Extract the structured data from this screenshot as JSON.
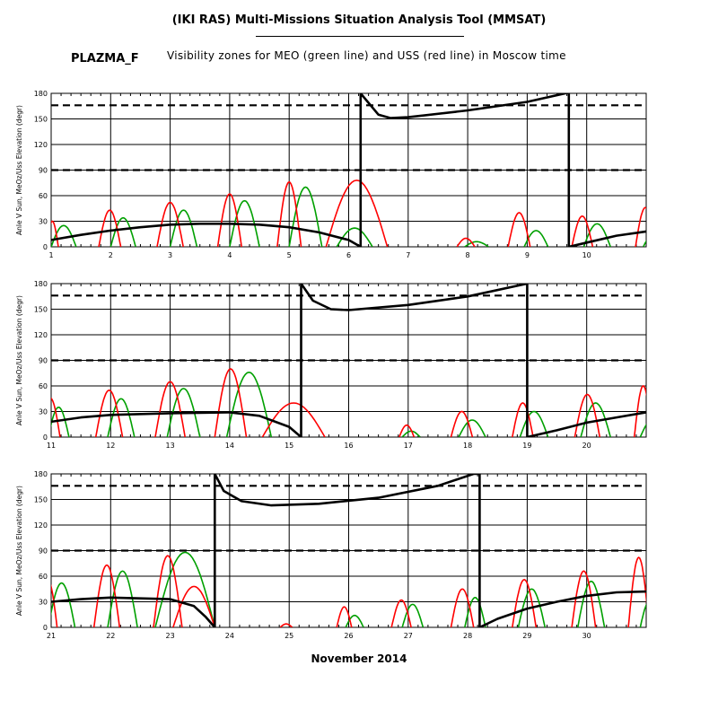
{
  "header": {
    "title": "(IKI RAS) Multi-Missions Situation Analysis Tool (MMSAT)",
    "mission": "PLAZMA_F",
    "subtitle": "Visibility zones for MEO (green line) and USS (red line) in Moscow time"
  },
  "xlabel": "November 2014",
  "colors": {
    "meo": "#00a000",
    "uss": "#ff0000",
    "sun_angle": "#000000",
    "grid": "#000000"
  },
  "chart_data": [
    {
      "type": "line",
      "ylabel": "Anle V Sun, MeOz/Uss Elevation (degr)",
      "ylim": [
        0,
        180
      ],
      "yticks": [
        0,
        30,
        60,
        90,
        120,
        150,
        180
      ],
      "xlim": [
        1,
        11
      ],
      "xticks": [
        1,
        2,
        3,
        4,
        5,
        6,
        7,
        8,
        9,
        10
      ],
      "thresholds": [
        90,
        166
      ],
      "sun_angle": [
        [
          1,
          8
        ],
        [
          1.5,
          14
        ],
        [
          2,
          19
        ],
        [
          2.5,
          23
        ],
        [
          3,
          26
        ],
        [
          3.5,
          27
        ],
        [
          4,
          27
        ],
        [
          4.5,
          26
        ],
        [
          5,
          23
        ],
        [
          5.5,
          17
        ],
        [
          6,
          8
        ],
        [
          6.2,
          0
        ],
        [
          6.2,
          180
        ],
        [
          6.5,
          155
        ],
        [
          6.7,
          151
        ],
        [
          7,
          152
        ],
        [
          8,
          160
        ],
        [
          9,
          170
        ],
        [
          9.7,
          181
        ],
        [
          9.7,
          0
        ],
        [
          10,
          5
        ],
        [
          10.5,
          13
        ],
        [
          11,
          18
        ]
      ],
      "uss_passes": [
        [
          0.92,
          1.12,
          30
        ],
        [
          1.8,
          2.17,
          43
        ],
        [
          2.78,
          3.22,
          52
        ],
        [
          3.8,
          4.2,
          62
        ],
        [
          4.8,
          5.2,
          76
        ],
        [
          5.62,
          6.65,
          78
        ],
        [
          7.82,
          8.12,
          10
        ],
        [
          8.68,
          9.05,
          40
        ],
        [
          9.75,
          10.1,
          36
        ],
        [
          10.82,
          11.15,
          46
        ]
      ],
      "meo_passes": [
        [
          1.0,
          1.42,
          25
        ],
        [
          2.0,
          2.42,
          34
        ],
        [
          3.0,
          3.45,
          43
        ],
        [
          4.0,
          4.5,
          54
        ],
        [
          5.0,
          5.55,
          70
        ],
        [
          5.8,
          6.4,
          22
        ],
        [
          7.95,
          8.35,
          6
        ],
        [
          8.95,
          9.35,
          19
        ],
        [
          9.95,
          10.4,
          27
        ],
        [
          10.95,
          11.3,
          15
        ]
      ]
    },
    {
      "type": "line",
      "ylabel": "Anle V Sun, MeOz/Uss Elevation (degr)",
      "ylim": [
        0,
        180
      ],
      "yticks": [
        0,
        30,
        60,
        90,
        120,
        150,
        180
      ],
      "xlim": [
        11,
        21
      ],
      "xticks": [
        11,
        12,
        13,
        14,
        15,
        16,
        17,
        18,
        19,
        20
      ],
      "thresholds": [
        90,
        166
      ],
      "sun_angle": [
        [
          11,
          18
        ],
        [
          11.5,
          23
        ],
        [
          12,
          26
        ],
        [
          13,
          28
        ],
        [
          14,
          29
        ],
        [
          14.5,
          25
        ],
        [
          15,
          12
        ],
        [
          15.2,
          0
        ],
        [
          15.2,
          180
        ],
        [
          15.4,
          160
        ],
        [
          15.7,
          150
        ],
        [
          16,
          149
        ],
        [
          17,
          155
        ],
        [
          18,
          165
        ],
        [
          19,
          180
        ],
        [
          19,
          0
        ],
        [
          19.5,
          8
        ],
        [
          20,
          17
        ],
        [
          20.5,
          23
        ],
        [
          21,
          29
        ]
      ],
      "uss_passes": [
        [
          10.82,
          11.15,
          46
        ],
        [
          11.75,
          12.2,
          55
        ],
        [
          12.75,
          13.25,
          65
        ],
        [
          13.75,
          14.28,
          80
        ],
        [
          14.55,
          15.6,
          40
        ],
        [
          16.85,
          17.1,
          14
        ],
        [
          17.72,
          18.08,
          30
        ],
        [
          18.75,
          19.1,
          40
        ],
        [
          19.8,
          20.22,
          50
        ],
        [
          20.8,
          21.1,
          60
        ]
      ],
      "meo_passes": [
        [
          10.95,
          11.3,
          35
        ],
        [
          11.95,
          12.4,
          45
        ],
        [
          12.95,
          13.5,
          57
        ],
        [
          13.95,
          14.7,
          76
        ],
        [
          16.9,
          17.2,
          7
        ],
        [
          17.85,
          18.3,
          20
        ],
        [
          18.88,
          19.35,
          30
        ],
        [
          19.9,
          20.4,
          40
        ],
        [
          20.9,
          21.3,
          20
        ]
      ]
    },
    {
      "type": "line",
      "ylabel": "Anle V Sun, MeOz/Uss Elevation (degr)",
      "ylim": [
        0,
        180
      ],
      "yticks": [
        0,
        30,
        60,
        90,
        120,
        150,
        180
      ],
      "xlim": [
        21,
        31
      ],
      "xticks": [
        21,
        22,
        23,
        24,
        25,
        26,
        27,
        28,
        29,
        30
      ],
      "thresholds": [
        90,
        166
      ],
      "sun_angle": [
        [
          21,
          30
        ],
        [
          21.5,
          33
        ],
        [
          22,
          35
        ],
        [
          23,
          33
        ],
        [
          23.4,
          25
        ],
        [
          23.6,
          12
        ],
        [
          23.75,
          0
        ],
        [
          23.75,
          180
        ],
        [
          23.9,
          160
        ],
        [
          24.2,
          148
        ],
        [
          24.7,
          143
        ],
        [
          25.5,
          145
        ],
        [
          26.5,
          152
        ],
        [
          27.5,
          166
        ],
        [
          28.1,
          180
        ],
        [
          28.2,
          180
        ],
        [
          28.2,
          0
        ],
        [
          28.5,
          10
        ],
        [
          29,
          22
        ],
        [
          29.5,
          30
        ],
        [
          30,
          37
        ],
        [
          30.5,
          41
        ],
        [
          31,
          42
        ]
      ],
      "uss_passes": [
        [
          20.8,
          21.1,
          55
        ],
        [
          21.72,
          22.15,
          73
        ],
        [
          22.72,
          23.2,
          84
        ],
        [
          23.05,
          23.75,
          48
        ],
        [
          24.85,
          25.05,
          4
        ],
        [
          25.8,
          26.05,
          24
        ],
        [
          26.72,
          27.05,
          32
        ],
        [
          27.72,
          28.1,
          45
        ],
        [
          28.75,
          29.15,
          56
        ],
        [
          29.75,
          30.15,
          66
        ],
        [
          30.7,
          31.05,
          82
        ]
      ],
      "meo_passes": [
        [
          20.95,
          21.4,
          52
        ],
        [
          21.95,
          22.45,
          66
        ],
        [
          22.75,
          23.75,
          88
        ],
        [
          25.95,
          26.25,
          14
        ],
        [
          26.9,
          27.25,
          27
        ],
        [
          27.95,
          28.3,
          35
        ],
        [
          28.85,
          29.3,
          45
        ],
        [
          29.85,
          30.3,
          54
        ],
        [
          30.9,
          31.2,
          30
        ]
      ]
    }
  ]
}
